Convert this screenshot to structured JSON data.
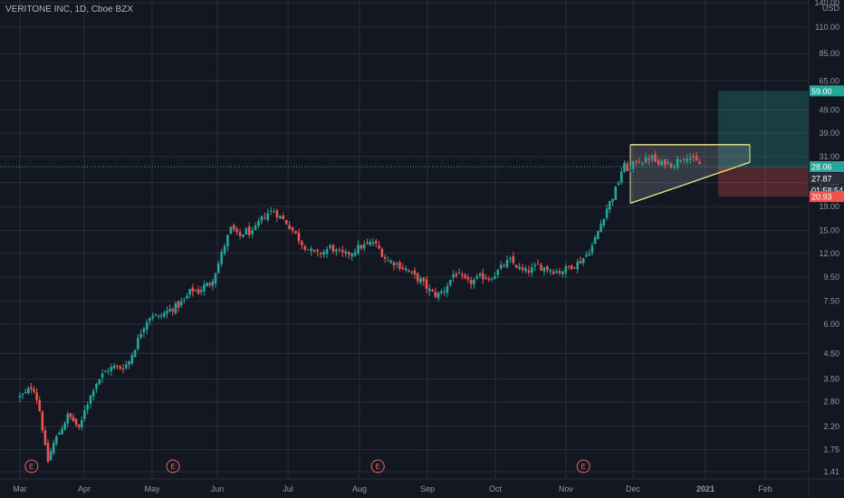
{
  "window": {
    "title": "VERITONE INC, 1D, Cboe BZX"
  },
  "chart_data": {
    "type": "candlestick",
    "title": "VERITONE INC, 1D, Cboe BZX",
    "currency": "USD",
    "y_scale": "log",
    "ylim": [
      1.35,
      140
    ],
    "y_ticks": [
      1.41,
      1.75,
      2.2,
      2.8,
      3.5,
      4.5,
      6.0,
      7.5,
      9.5,
      12.0,
      15.0,
      19.0,
      24.0,
      31.0,
      39.0,
      49.0,
      65.0,
      85.0,
      110.0,
      140.0
    ],
    "x_ticks": [
      "Mar",
      "Apr",
      "May",
      "Jun",
      "Jul",
      "Aug",
      "Sep",
      "Oct",
      "Nov",
      "Dec",
      "2021",
      "Feb"
    ],
    "grid": true,
    "colors": {
      "up": "#26a69a",
      "down": "#ef5350",
      "background": "#131722",
      "grid": "#2a2e39",
      "pattern": "#f0e68c",
      "target_zone": "#26a69a",
      "stop_zone": "#ef5350"
    },
    "price_labels": [
      {
        "value": 59.0,
        "text": "59.00",
        "color": "#26a69a"
      },
      {
        "value": 28.06,
        "text": "28.06",
        "color": "#26a69a"
      },
      {
        "value": 27.87,
        "text": "27.87",
        "color": "#2a2e39"
      },
      {
        "value": 23.6,
        "text": "01:58:54",
        "color": "#2a2e39"
      },
      {
        "value": 20.93,
        "text": "20.93",
        "color": "#ef5350"
      }
    ],
    "last_price": 28.06,
    "earnings_markers": [
      {
        "label": "E",
        "date_index": 0
      },
      {
        "label": "E",
        "date_index": 1
      },
      {
        "label": "E",
        "date_index": 2
      },
      {
        "label": "E",
        "date_index": 3
      }
    ],
    "earnings_positions_ticks": [
      0.18,
      2.32,
      5.27,
      8.26
    ],
    "triangle_pattern": {
      "top": 34.8,
      "apex_price": 29.3,
      "bottom_start": 19.6,
      "start_tick": 8.02,
      "end_tick": 9.96
    },
    "position_zones": {
      "entry": 28.06,
      "target": 59.0,
      "stop": 20.93,
      "start_tick": 9.96,
      "end_tick": 10.0
    },
    "close_path": [
      [
        0.0,
        2.95
      ],
      [
        0.1,
        3.05
      ],
      [
        0.2,
        3.3
      ],
      [
        0.27,
        2.85
      ],
      [
        0.33,
        2.4
      ],
      [
        0.38,
        1.85
      ],
      [
        0.44,
        1.55
      ],
      [
        0.5,
        1.8
      ],
      [
        0.58,
        2.0
      ],
      [
        0.66,
        2.2
      ],
      [
        0.75,
        2.45
      ],
      [
        0.85,
        2.3
      ],
      [
        0.93,
        2.1
      ],
      [
        1.0,
        2.6
      ],
      [
        1.08,
        2.9
      ],
      [
        1.15,
        3.3
      ],
      [
        1.25,
        3.6
      ],
      [
        1.35,
        3.85
      ],
      [
        1.45,
        3.95
      ],
      [
        1.55,
        3.9
      ],
      [
        1.65,
        4.1
      ],
      [
        1.75,
        4.8
      ],
      [
        1.85,
        5.7
      ],
      [
        1.93,
        6.3
      ],
      [
        2.0,
        6.6
      ],
      [
        2.1,
        6.4
      ],
      [
        2.2,
        6.7
      ],
      [
        2.3,
        7.0
      ],
      [
        2.4,
        7.2
      ],
      [
        2.5,
        7.6
      ],
      [
        2.6,
        8.4
      ],
      [
        2.7,
        8.2
      ],
      [
        2.8,
        8.7
      ],
      [
        2.9,
        9.0
      ],
      [
        3.0,
        10.5
      ],
      [
        3.1,
        13.0
      ],
      [
        3.2,
        15.5
      ],
      [
        3.3,
        14.0
      ],
      [
        3.4,
        15.0
      ],
      [
        3.5,
        14.5
      ],
      [
        3.6,
        16.5
      ],
      [
        3.7,
        17.8
      ],
      [
        3.8,
        18.2
      ],
      [
        3.9,
        17.0
      ],
      [
        4.0,
        16.0
      ],
      [
        4.1,
        14.5
      ],
      [
        4.2,
        13.2
      ],
      [
        4.3,
        12.4
      ],
      [
        4.4,
        11.8
      ],
      [
        4.5,
        12.2
      ],
      [
        4.6,
        12.8
      ],
      [
        4.7,
        12.0
      ],
      [
        4.8,
        11.8
      ],
      [
        4.9,
        12.2
      ],
      [
        5.0,
        12.8
      ],
      [
        5.1,
        13.0
      ],
      [
        5.2,
        13.4
      ],
      [
        5.3,
        12.4
      ],
      [
        5.4,
        11.2
      ],
      [
        5.5,
        11.0
      ],
      [
        5.6,
        10.6
      ],
      [
        5.7,
        10.2
      ],
      [
        5.8,
        9.6
      ],
      [
        5.9,
        9.2
      ],
      [
        6.0,
        8.5
      ],
      [
        6.1,
        8.0
      ],
      [
        6.15,
        8.0
      ],
      [
        6.25,
        8.4
      ],
      [
        6.35,
        9.4
      ],
      [
        6.4,
        10.0
      ],
      [
        6.5,
        9.4
      ],
      [
        6.6,
        9.0
      ],
      [
        6.7,
        9.2
      ],
      [
        6.8,
        9.6
      ],
      [
        6.9,
        9.4
      ],
      [
        7.0,
        9.8
      ],
      [
        7.1,
        10.6
      ],
      [
        7.2,
        11.2
      ],
      [
        7.3,
        10.6
      ],
      [
        7.4,
        10.0
      ],
      [
        7.5,
        10.2
      ],
      [
        7.6,
        10.6
      ],
      [
        7.7,
        10.4
      ],
      [
        7.8,
        10.2
      ],
      [
        7.9,
        10.0
      ],
      [
        8.0,
        10.3
      ],
      [
        8.1,
        10.7
      ],
      [
        8.2,
        11.0
      ],
      [
        8.3,
        11.8
      ],
      [
        8.4,
        13.0
      ],
      [
        8.5,
        15.5
      ],
      [
        8.6,
        18.5
      ],
      [
        8.7,
        21.0
      ],
      [
        8.78,
        24.0
      ],
      [
        8.85,
        28.5
      ],
      [
        8.95,
        27.0
      ],
      [
        9.05,
        30.0
      ],
      [
        9.15,
        29.5
      ],
      [
        9.25,
        31.0
      ],
      [
        9.35,
        28.5
      ],
      [
        9.45,
        29.5
      ],
      [
        9.55,
        28.5
      ],
      [
        9.65,
        30.5
      ],
      [
        9.75,
        31.5
      ],
      [
        9.85,
        29.5
      ],
      [
        9.95,
        28.5
      ],
      [
        10.0,
        28.06
      ]
    ],
    "volatility": 0.07
  }
}
